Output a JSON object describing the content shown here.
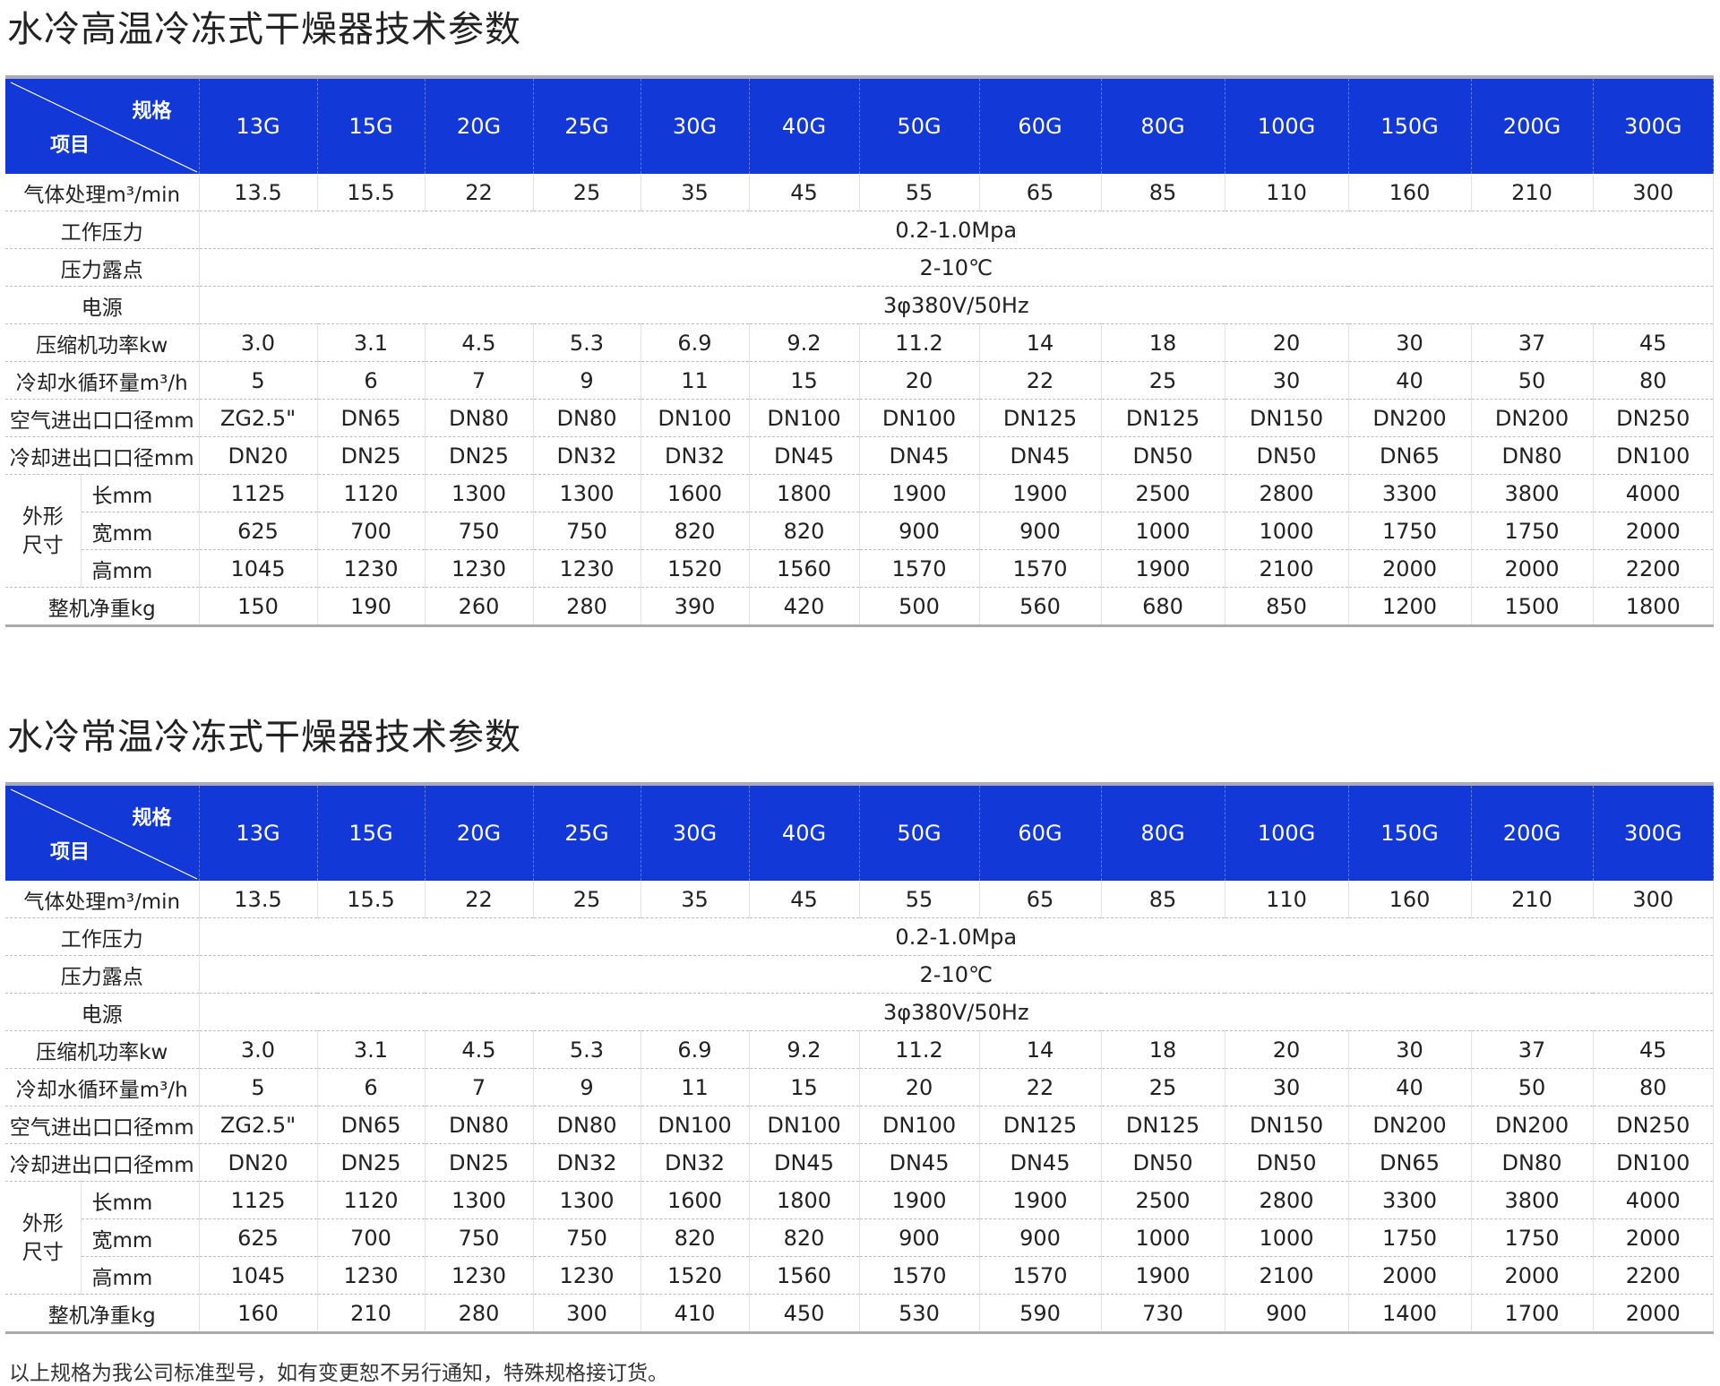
{
  "tables": [
    {
      "title": "水冷高温冷冻式干燥器技术参数",
      "corner_spec": "规格",
      "corner_item": "项目",
      "models": [
        "13G",
        "15G",
        "20G",
        "25G",
        "30G",
        "40G",
        "50G",
        "60G",
        "80G",
        "100G",
        "150G",
        "200G",
        "300G"
      ],
      "rows": [
        {
          "label": "气体处理m³/min",
          "values": [
            "13.5",
            "15.5",
            "22",
            "25",
            "35",
            "45",
            "55",
            "65",
            "85",
            "110",
            "160",
            "210",
            "300"
          ]
        },
        {
          "label": "工作压力",
          "span": "0.2-1.0Mpa"
        },
        {
          "label": "压力露点",
          "span": "2-10℃"
        },
        {
          "label": "电源",
          "span": "3φ380V/50Hz"
        },
        {
          "label": "压缩机功率kw",
          "values": [
            "3.0",
            "3.1",
            "4.5",
            "5.3",
            "6.9",
            "9.2",
            "11.2",
            "14",
            "18",
            "20",
            "30",
            "37",
            "45"
          ]
        },
        {
          "label": "冷却水循环量m³/h",
          "values": [
            "5",
            "6",
            "7",
            "9",
            "11",
            "15",
            "20",
            "22",
            "25",
            "30",
            "40",
            "50",
            "80"
          ]
        },
        {
          "label": "空气进出口口径mm",
          "values": [
            "ZG2.5\"",
            "DN65",
            "DN80",
            "DN80",
            "DN100",
            "DN100",
            "DN100",
            "DN125",
            "DN125",
            "DN150",
            "DN200",
            "DN200",
            "DN250"
          ]
        },
        {
          "label": "冷却进出口口径mm",
          "values": [
            "DN20",
            "DN25",
            "DN25",
            "DN32",
            "DN32",
            "DN45",
            "DN45",
            "DN45",
            "DN50",
            "DN50",
            "DN65",
            "DN80",
            "DN100"
          ]
        },
        {
          "group": "外形尺寸",
          "label": "长mm",
          "values": [
            "1125",
            "1120",
            "1300",
            "1300",
            "1600",
            "1800",
            "1900",
            "1900",
            "2500",
            "2800",
            "3300",
            "3800",
            "4000"
          ]
        },
        {
          "label": "宽mm",
          "values": [
            "625",
            "700",
            "750",
            "750",
            "820",
            "820",
            "900",
            "900",
            "1000",
            "1000",
            "1750",
            "1750",
            "2000"
          ]
        },
        {
          "label": "高mm",
          "values": [
            "1045",
            "1230",
            "1230",
            "1230",
            "1520",
            "1560",
            "1570",
            "1570",
            "1900",
            "2100",
            "2000",
            "2000",
            "2200"
          ]
        },
        {
          "label": "整机净重kg",
          "values": [
            "150",
            "190",
            "260",
            "280",
            "390",
            "420",
            "500",
            "560",
            "680",
            "850",
            "1200",
            "1500",
            "1800"
          ]
        }
      ]
    },
    {
      "title": "水冷常温冷冻式干燥器技术参数",
      "corner_spec": "规格",
      "corner_item": "项目",
      "models": [
        "13G",
        "15G",
        "20G",
        "25G",
        "30G",
        "40G",
        "50G",
        "60G",
        "80G",
        "100G",
        "150G",
        "200G",
        "300G"
      ],
      "rows": [
        {
          "label": "气体处理m³/min",
          "values": [
            "13.5",
            "15.5",
            "22",
            "25",
            "35",
            "45",
            "55",
            "65",
            "85",
            "110",
            "160",
            "210",
            "300"
          ]
        },
        {
          "label": "工作压力",
          "span": "0.2-1.0Mpa"
        },
        {
          "label": "压力露点",
          "span": "2-10℃"
        },
        {
          "label": "电源",
          "span": "3φ380V/50Hz"
        },
        {
          "label": "压缩机功率kw",
          "values": [
            "3.0",
            "3.1",
            "4.5",
            "5.3",
            "6.9",
            "9.2",
            "11.2",
            "14",
            "18",
            "20",
            "30",
            "37",
            "45"
          ]
        },
        {
          "label": "冷却水循环量m³/h",
          "values": [
            "5",
            "6",
            "7",
            "9",
            "11",
            "15",
            "20",
            "22",
            "25",
            "30",
            "40",
            "50",
            "80"
          ]
        },
        {
          "label": "空气进出口口径mm",
          "values": [
            "ZG2.5\"",
            "DN65",
            "DN80",
            "DN80",
            "DN100",
            "DN100",
            "DN100",
            "DN125",
            "DN125",
            "DN150",
            "DN200",
            "DN200",
            "DN250"
          ]
        },
        {
          "label": "冷却进出口口径mm",
          "values": [
            "DN20",
            "DN25",
            "DN25",
            "DN32",
            "DN32",
            "DN45",
            "DN45",
            "DN45",
            "DN50",
            "DN50",
            "DN65",
            "DN80",
            "DN100"
          ]
        },
        {
          "group": "外形尺寸",
          "label": "长mm",
          "values": [
            "1125",
            "1120",
            "1300",
            "1300",
            "1600",
            "1800",
            "1900",
            "1900",
            "2500",
            "2800",
            "3300",
            "3800",
            "4000"
          ]
        },
        {
          "label": "宽mm",
          "values": [
            "625",
            "700",
            "750",
            "750",
            "820",
            "820",
            "900",
            "900",
            "1000",
            "1000",
            "1750",
            "1750",
            "2000"
          ]
        },
        {
          "label": "高mm",
          "values": [
            "1045",
            "1230",
            "1230",
            "1230",
            "1520",
            "1560",
            "1570",
            "1570",
            "1900",
            "2100",
            "2000",
            "2000",
            "2200"
          ]
        },
        {
          "label": "整机净重kg",
          "values": [
            "160",
            "210",
            "280",
            "300",
            "410",
            "450",
            "530",
            "590",
            "730",
            "900",
            "1400",
            "1700",
            "2000"
          ]
        }
      ]
    }
  ],
  "footnote": "以上规格为我公司标准型号，如有变更恕不另行通知，特殊规格接订货。",
  "colors": {
    "header_bg": "#1338d8",
    "header_text": "#ffffff"
  }
}
